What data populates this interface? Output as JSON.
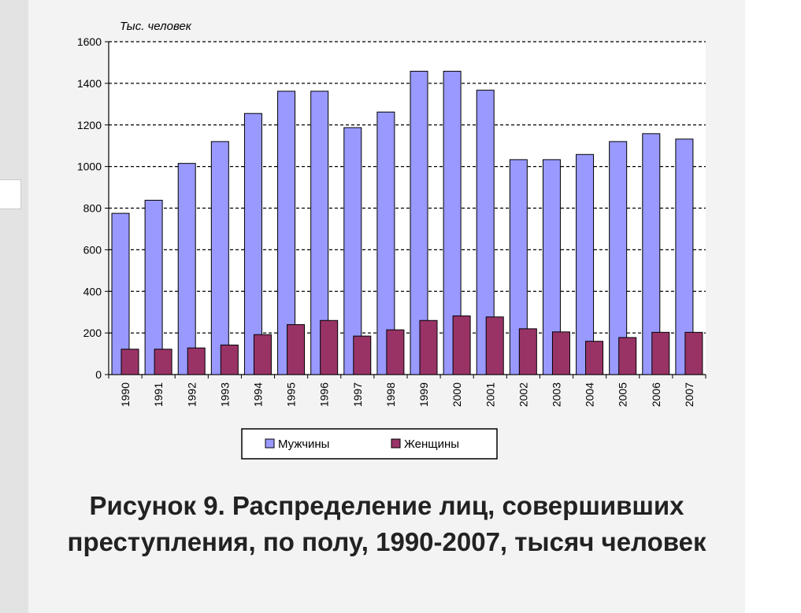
{
  "chart_data": {
    "type": "bar",
    "ylabel": "Тыс. человек",
    "ylim": [
      0,
      1600
    ],
    "yticks": [
      0,
      200,
      400,
      600,
      800,
      1000,
      1200,
      1400,
      1600
    ],
    "grid": true,
    "legend": "bottom",
    "categories": [
      "1990",
      "1991",
      "1992",
      "1993",
      "1994",
      "1995",
      "1996",
      "1997",
      "1998",
      "1999",
      "2000",
      "2001",
      "2002",
      "2003",
      "2004",
      "2005",
      "2006",
      "2007"
    ],
    "series": [
      {
        "name": "Мужчины",
        "color": "#9999ff",
        "values": [
          775,
          838,
          1015,
          1120,
          1255,
          1362,
          1362,
          1187,
          1262,
          1458,
          1458,
          1367,
          1033,
          1033,
          1058,
          1120,
          1158,
          1132
        ]
      },
      {
        "name": "Женщины",
        "color": "#993366",
        "values": [
          122,
          122,
          128,
          142,
          192,
          240,
          260,
          185,
          215,
          260,
          282,
          277,
          220,
          205,
          160,
          178,
          203,
          203
        ]
      }
    ]
  },
  "caption": "Рисунок 9. Распределение лиц, совершивших преступления, по полу, 1990-2007, тысяч человек"
}
